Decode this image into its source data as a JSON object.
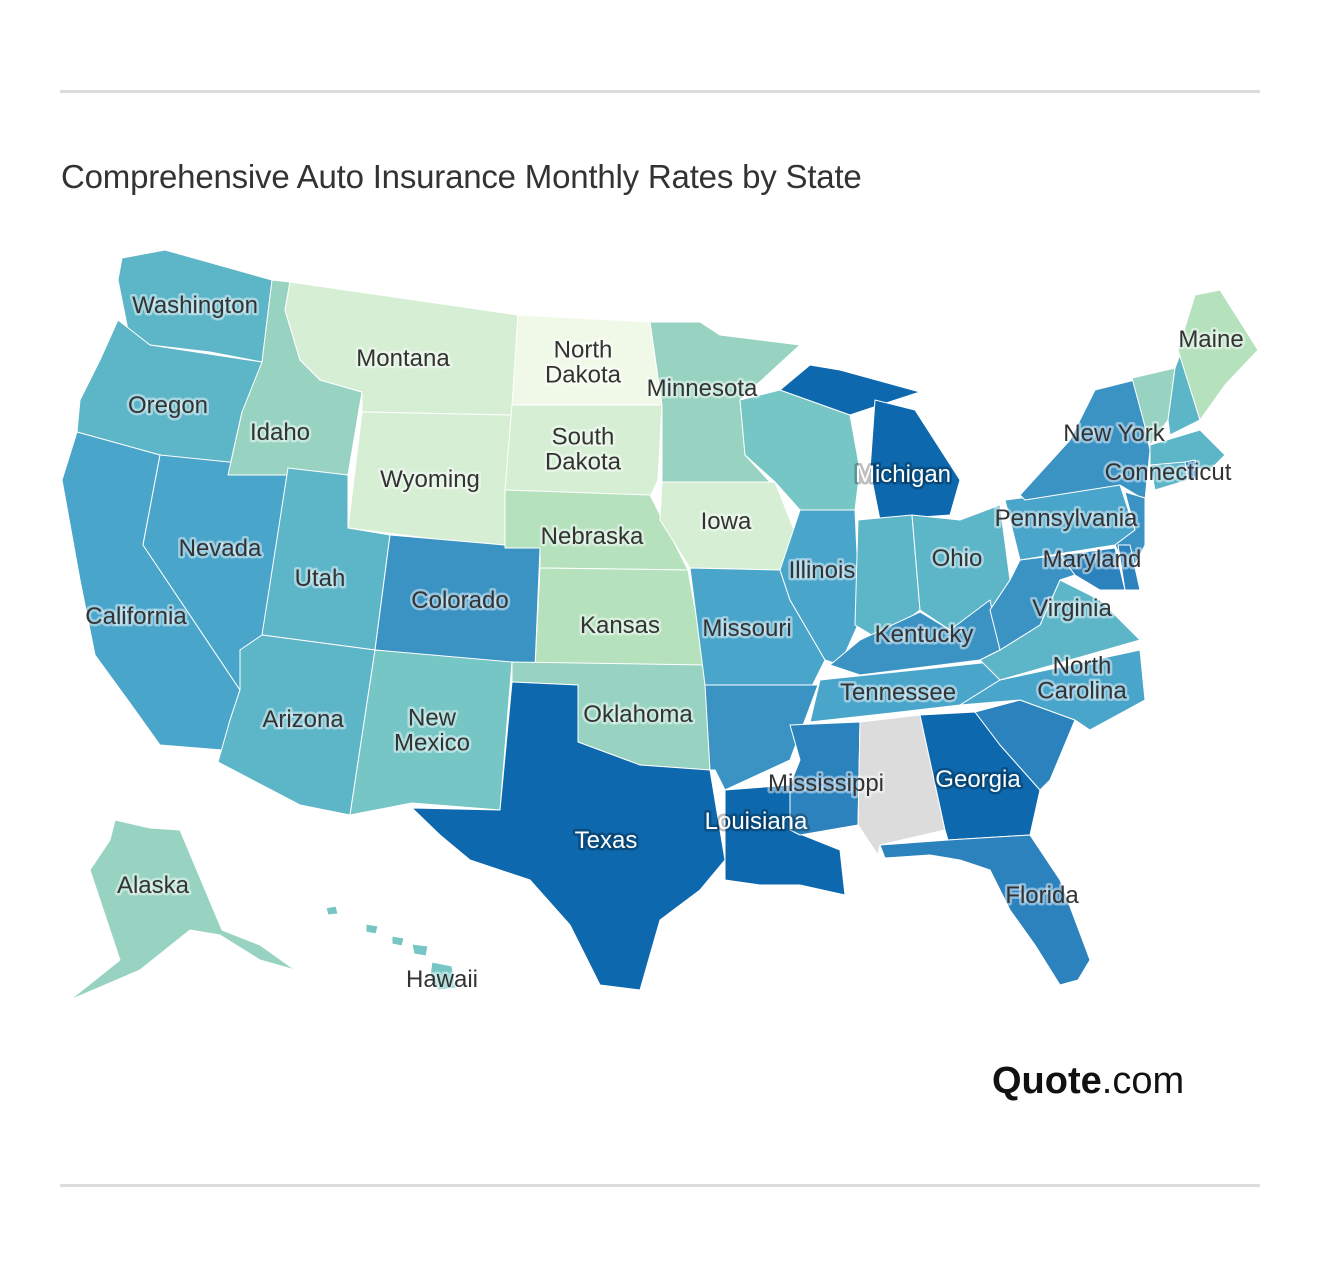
{
  "title": "Comprehensive Auto Insurance Monthly Rates by State",
  "logo": {
    "bold": "Quote",
    "rest": ".com"
  },
  "colors": {
    "no_data": "#dcdcdc",
    "c1": "#f0f9e8",
    "c2": "#d6efd4",
    "c3": "#b5e1bd",
    "c4": "#97d3c0",
    "c5": "#76c6c5",
    "c6": "#5db5c8",
    "c7": "#4aa5cb",
    "c8": "#3b93c3",
    "c9": "#2b82bd",
    "c10": "#0d68ae"
  },
  "states": [
    {
      "name": "Washington",
      "label": [
        "Washington"
      ],
      "color": "c6"
    },
    {
      "name": "Oregon",
      "label": [
        "Oregon"
      ],
      "color": "c6"
    },
    {
      "name": "California",
      "label": [
        "California"
      ],
      "color": "c7"
    },
    {
      "name": "Nevada",
      "label": [
        "Nevada"
      ],
      "color": "c7"
    },
    {
      "name": "Idaho",
      "label": [
        "Idaho"
      ],
      "color": "c4"
    },
    {
      "name": "Montana",
      "label": [
        "Montana"
      ],
      "color": "c2"
    },
    {
      "name": "Wyoming",
      "label": [
        "Wyoming"
      ],
      "color": "c2"
    },
    {
      "name": "Utah",
      "label": [
        "Utah"
      ],
      "color": "c6"
    },
    {
      "name": "Arizona",
      "label": [
        "Arizona"
      ],
      "color": "c6"
    },
    {
      "name": "Colorado",
      "label": [
        "Colorado"
      ],
      "color": "c8"
    },
    {
      "name": "New Mexico",
      "label": [
        "New",
        "Mexico"
      ],
      "color": "c5"
    },
    {
      "name": "North Dakota",
      "label": [
        "North",
        "Dakota"
      ],
      "color": "c1"
    },
    {
      "name": "South Dakota",
      "label": [
        "South",
        "Dakota"
      ],
      "color": "c2"
    },
    {
      "name": "Nebraska",
      "label": [
        "Nebraska"
      ],
      "color": "c3"
    },
    {
      "name": "Kansas",
      "label": [
        "Kansas"
      ],
      "color": "c3"
    },
    {
      "name": "Oklahoma",
      "label": [
        "Oklahoma"
      ],
      "color": "c4"
    },
    {
      "name": "Texas",
      "label": [
        "Texas"
      ],
      "color": "c10"
    },
    {
      "name": "Minnesota",
      "label": [
        "Minnesota"
      ],
      "color": "c4"
    },
    {
      "name": "Iowa",
      "label": [
        "Iowa"
      ],
      "color": "c2"
    },
    {
      "name": "Missouri",
      "label": [
        "Missouri"
      ],
      "color": "c7"
    },
    {
      "name": "Arkansas",
      "label": [],
      "color": "c8"
    },
    {
      "name": "Louisiana",
      "label": [
        "Louisiana"
      ],
      "color": "c10"
    },
    {
      "name": "Wisconsin",
      "label": [],
      "color": "c5"
    },
    {
      "name": "Illinois",
      "label": [
        "Illinois"
      ],
      "color": "c7"
    },
    {
      "name": "Michigan",
      "label": [
        "Michigan"
      ],
      "color": "c10"
    },
    {
      "name": "Indiana",
      "label": [],
      "color": "c6"
    },
    {
      "name": "Ohio",
      "label": [
        "Ohio"
      ],
      "color": "c6"
    },
    {
      "name": "Kentucky",
      "label": [
        "Kentucky"
      ],
      "color": "c8"
    },
    {
      "name": "Tennessee",
      "label": [
        "Tennessee"
      ],
      "color": "c7"
    },
    {
      "name": "Mississippi",
      "label": [
        "Mississippi"
      ],
      "color": "c9"
    },
    {
      "name": "Alabama",
      "label": [],
      "color": "no_data"
    },
    {
      "name": "Georgia",
      "label": [
        "Georgia"
      ],
      "color": "c10"
    },
    {
      "name": "Florida",
      "label": [
        "Florida"
      ],
      "color": "c9"
    },
    {
      "name": "South Carolina",
      "label": [],
      "color": "c9"
    },
    {
      "name": "North Carolina",
      "label": [
        "North",
        "Carolina"
      ],
      "color": "c7"
    },
    {
      "name": "Virginia",
      "label": [
        "Virginia"
      ],
      "color": "c6"
    },
    {
      "name": "West Virginia",
      "label": [],
      "color": "c8"
    },
    {
      "name": "Pennsylvania",
      "label": [
        "Pennsylvania"
      ],
      "color": "c7"
    },
    {
      "name": "New York",
      "label": [
        "New York"
      ],
      "color": "c8"
    },
    {
      "name": "New Jersey",
      "label": [],
      "color": "c8"
    },
    {
      "name": "Maryland",
      "label": [
        "Maryland"
      ],
      "color": "c9"
    },
    {
      "name": "Delaware",
      "label": [],
      "color": "c9"
    },
    {
      "name": "Vermont",
      "label": [],
      "color": "c4"
    },
    {
      "name": "New Hampshire",
      "label": [],
      "color": "c6"
    },
    {
      "name": "Maine",
      "label": [
        "Maine"
      ],
      "color": "c3"
    },
    {
      "name": "Massachusetts",
      "label": [],
      "color": "c6"
    },
    {
      "name": "Connecticut",
      "label": [
        "Connecticut"
      ],
      "color": "c6"
    },
    {
      "name": "Rhode Island",
      "label": [],
      "color": "c9"
    },
    {
      "name": "Alaska",
      "label": [
        "Alaska"
      ],
      "color": "c4"
    },
    {
      "name": "Hawaii",
      "label": [
        "Hawaii"
      ],
      "color": "c5"
    }
  ]
}
